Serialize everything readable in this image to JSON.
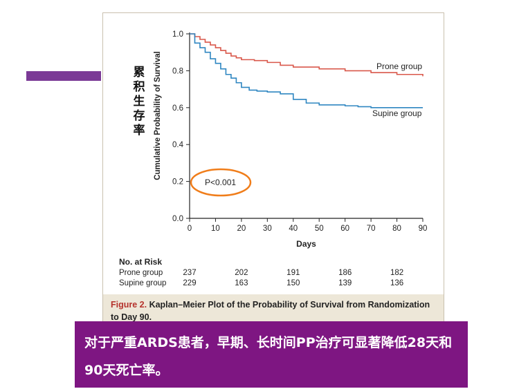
{
  "slide": {
    "cn_ylabel": "累积生存率",
    "conclusion": "对于严重ARDS患者，早期、长时间PP治疗可显著降低28天和90天死亡率。"
  },
  "figure": {
    "caption_label": "Figure 2.",
    "caption_text": " Kaplan–Meier Plot of the Probability of Survival from Randomization to Day 90."
  },
  "colors": {
    "prone": "#d9574a",
    "supine": "#2e86c1",
    "annotation_ellipse": "#f07d1a",
    "accent": "#7b3a96",
    "conclusion_bg": "#7e1682"
  },
  "chart_data": {
    "type": "line",
    "title": "",
    "xlabel": "Days",
    "ylabel": "Cumulative Probability of Survival",
    "xlim": [
      0,
      90
    ],
    "ylim": [
      0,
      1
    ],
    "x_ticks": [
      "0",
      "10",
      "20",
      "30",
      "40",
      "50",
      "60",
      "70",
      "80",
      "90"
    ],
    "y_ticks": [
      "0.0",
      "0.2",
      "0.4",
      "0.6",
      "0.8",
      "1.0"
    ],
    "annotation": "P<0.001",
    "series": [
      {
        "name": "Prone group",
        "x": [
          0,
          2,
          4,
          6,
          8,
          10,
          12,
          14,
          16,
          18,
          20,
          25,
          30,
          35,
          40,
          50,
          60,
          70,
          80,
          90
        ],
        "y": [
          1.0,
          0.985,
          0.97,
          0.955,
          0.94,
          0.925,
          0.91,
          0.895,
          0.88,
          0.87,
          0.86,
          0.855,
          0.845,
          0.83,
          0.82,
          0.81,
          0.8,
          0.79,
          0.78,
          0.77
        ]
      },
      {
        "name": "Supine group",
        "x": [
          0,
          2,
          4,
          6,
          8,
          10,
          12,
          14,
          16,
          18,
          20,
          23,
          26,
          30,
          35,
          40,
          45,
          50,
          60,
          65,
          70,
          80,
          90
        ],
        "y": [
          1.0,
          0.95,
          0.925,
          0.9,
          0.865,
          0.84,
          0.81,
          0.78,
          0.76,
          0.735,
          0.71,
          0.695,
          0.69,
          0.685,
          0.675,
          0.645,
          0.625,
          0.615,
          0.61,
          0.605,
          0.6,
          0.6,
          0.6
        ]
      }
    ],
    "at_risk": {
      "header": "No. at Risk",
      "rows": [
        {
          "label": "Prone group",
          "values": [
            "237",
            "202",
            "191",
            "186",
            "182"
          ]
        },
        {
          "label": "Supine group",
          "values": [
            "229",
            "163",
            "150",
            "139",
            "136"
          ]
        }
      ]
    }
  }
}
